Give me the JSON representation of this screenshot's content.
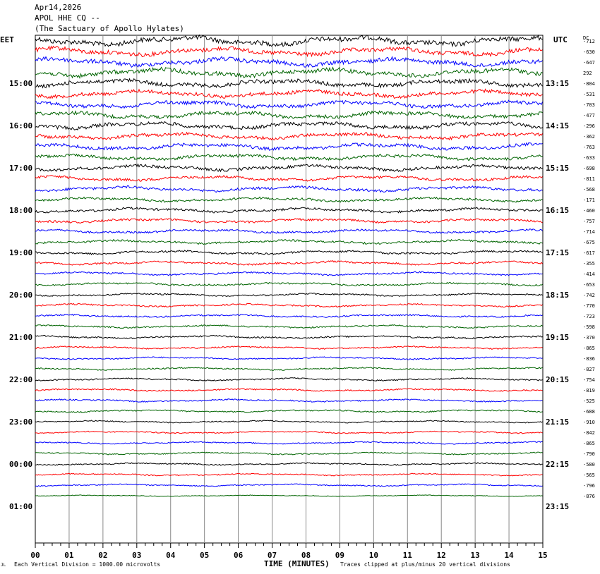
{
  "header": {
    "date": "Apr14,2026",
    "station": "APOL HHE CQ --",
    "site": "(The Sactuary of Apollo Hylates)"
  },
  "chart_data": {
    "type": "line",
    "title": "",
    "xlabel": "TIME (MINUTES)",
    "ylabel": "",
    "left_zone": "EET",
    "right_zone": "UTC",
    "dc_label": "DC",
    "xlim": [
      0,
      15
    ],
    "x_ticks": [
      "00",
      "01",
      "02",
      "03",
      "04",
      "05",
      "06",
      "07",
      "08",
      "09",
      "10",
      "11",
      "12",
      "13",
      "14",
      "15"
    ],
    "left_time_labels": [
      "15:00",
      "16:00",
      "17:00",
      "18:00",
      "19:00",
      "20:00",
      "21:00",
      "22:00",
      "23:00",
      "00:00",
      "01:00"
    ],
    "right_time_labels": [
      "13:15",
      "14:15",
      "15:15",
      "16:15",
      "17:15",
      "18:15",
      "19:15",
      "20:15",
      "21:15",
      "22:15",
      "23:15"
    ],
    "trace_colors": [
      "#000000",
      "#ff0000",
      "#0000ff",
      "#006400"
    ],
    "dc_offsets": [
      "-712",
      "-630",
      "-647",
      "292",
      "-804",
      "-531",
      "-703",
      "-477",
      "-296",
      "-362",
      "-763",
      "-633",
      "-698",
      "-811",
      "-568",
      "-171",
      "-460",
      "-757",
      "-714",
      "-675",
      "-617",
      "-355",
      "-414",
      "-653",
      "-742",
      "-770",
      "-723",
      "-598",
      "-370",
      "-865",
      "-836",
      "-827",
      "-754",
      "-819",
      "-525",
      "-688",
      "-910",
      "-842",
      "-865",
      "-790",
      "-580",
      "-565",
      "-796",
      "-876"
    ],
    "trace_activity": [
      3,
      2.6,
      2.6,
      2.6,
      2.4,
      2.2,
      2.2,
      2.2,
      2.2,
      2,
      2,
      1.8,
      1.8,
      1.6,
      1.6,
      1.4,
      1.4,
      1.3,
      1.2,
      1.2,
      1.2,
      1.1,
      1,
      1,
      0.9,
      0.9,
      0.9,
      0.9,
      0.9,
      0.8,
      0.8,
      0.8,
      0.8,
      0.8,
      0.8,
      0.8,
      0.7,
      0.7,
      0.7,
      0.7,
      0.7,
      0.7,
      0.7,
      0.4
    ],
    "footer_left": "Each Vertical Division = 1000.00 microvolts",
    "footer_right": "Traces clipped at plus/minus 20 vertical divisions",
    "corner_mark": "JL"
  }
}
